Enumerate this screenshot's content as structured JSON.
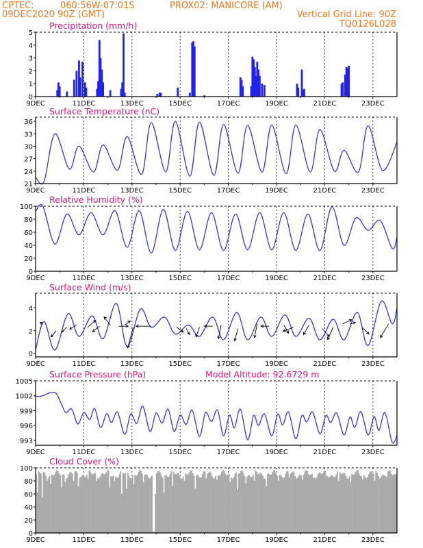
{
  "header": {
    "source": "CPTEC:",
    "coords": "060:56W-07:01S",
    "location": "PROX02: MANICORE (AM)",
    "run": "09DEC2020 90Z (GMT)",
    "grid_note": "Vertical Grid Line: 90Z",
    "code": "TQ0126L028"
  },
  "colors": {
    "header": "#f0781e",
    "titles": "#e0147a",
    "lines": "#3333dd",
    "bars": "#2222ee",
    "cloud": "#aaaaaa"
  },
  "x_axis_labels": [
    "9DEC",
    "11DEC",
    "13DEC",
    "15DEC",
    "17DEC",
    "19DEC",
    "21DEC",
    "23DEC"
  ],
  "chart_data": [
    {
      "type": "bar",
      "title": "Precipitation (mm/h)",
      "ylim": [
        0,
        5
      ],
      "yticks": [
        0,
        1,
        2,
        3,
        4,
        5
      ],
      "x_range_days": 15,
      "events": [
        {
          "day": 0.9,
          "value": 0.5
        },
        {
          "day": 0.95,
          "value": 1.1
        },
        {
          "day": 1.0,
          "value": 0.8
        },
        {
          "day": 1.3,
          "value": 0.4
        },
        {
          "day": 1.6,
          "value": 1.3
        },
        {
          "day": 1.7,
          "value": 2.0
        },
        {
          "day": 1.8,
          "value": 2.8
        },
        {
          "day": 1.85,
          "value": 1.5
        },
        {
          "day": 1.95,
          "value": 2.7
        },
        {
          "day": 2.05,
          "value": 1.1
        },
        {
          "day": 2.1,
          "value": 0.7
        },
        {
          "day": 2.55,
          "value": 0.6
        },
        {
          "day": 2.6,
          "value": 1.2
        },
        {
          "day": 2.65,
          "value": 4.4
        },
        {
          "day": 2.7,
          "value": 3.0
        },
        {
          "day": 2.75,
          "value": 2.1
        },
        {
          "day": 2.8,
          "value": 1.1
        },
        {
          "day": 3.1,
          "value": 0.5
        },
        {
          "day": 3.55,
          "value": 0.6
        },
        {
          "day": 3.6,
          "value": 1.1
        },
        {
          "day": 3.65,
          "value": 4.9
        },
        {
          "day": 3.7,
          "value": 0.3
        },
        {
          "day": 5.05,
          "value": 0.2
        },
        {
          "day": 5.15,
          "value": 0.3
        },
        {
          "day": 5.2,
          "value": 0.3
        },
        {
          "day": 5.9,
          "value": 0.7
        },
        {
          "day": 6.4,
          "value": 0.3
        },
        {
          "day": 6.5,
          "value": 4.2
        },
        {
          "day": 6.55,
          "value": 4.3
        },
        {
          "day": 6.6,
          "value": 3.9
        },
        {
          "day": 7.0,
          "value": 0.1
        },
        {
          "day": 8.5,
          "value": 1.5
        },
        {
          "day": 8.55,
          "value": 1.3
        },
        {
          "day": 8.6,
          "value": 0.8
        },
        {
          "day": 8.95,
          "value": 0.8
        },
        {
          "day": 9.0,
          "value": 3.1
        },
        {
          "day": 9.05,
          "value": 2.9
        },
        {
          "day": 9.1,
          "value": 2.3
        },
        {
          "day": 9.15,
          "value": 1.6
        },
        {
          "day": 9.2,
          "value": 2.7
        },
        {
          "day": 9.25,
          "value": 2.1
        },
        {
          "day": 9.3,
          "value": 1.6
        },
        {
          "day": 9.4,
          "value": 1.0
        },
        {
          "day": 9.5,
          "value": 0.9
        },
        {
          "day": 10.85,
          "value": 1.0
        },
        {
          "day": 10.9,
          "value": 0.7
        },
        {
          "day": 11.05,
          "value": 2.1
        },
        {
          "day": 11.1,
          "value": 0.5
        },
        {
          "day": 11.15,
          "value": 0.6
        },
        {
          "day": 12.7,
          "value": 1.0
        },
        {
          "day": 12.75,
          "value": 1.1
        },
        {
          "day": 12.85,
          "value": 1.7
        },
        {
          "day": 12.9,
          "value": 2.3
        },
        {
          "day": 12.95,
          "value": 2.2
        },
        {
          "day": 13.0,
          "value": 2.4
        }
      ]
    },
    {
      "type": "line",
      "title": "Surface Temperature (nC)",
      "ylim": [
        21,
        37
      ],
      "yticks": [
        21,
        24,
        27,
        30,
        33,
        36
      ],
      "mins": [
        21.5,
        24.5,
        23.8,
        24.2,
        23.2,
        23.8,
        22.8,
        23.0,
        23.5,
        23.8,
        23.4,
        23.8,
        24.0,
        23.8,
        24.2,
        23.0
      ],
      "maxs": [
        33.0,
        30.0,
        30.3,
        32.3,
        35.7,
        36.0,
        35.8,
        35.2,
        35.0,
        35.1,
        35.1,
        34.0,
        29.0,
        34.9
      ],
      "start": 22.5,
      "end": 31.0
    },
    {
      "type": "line",
      "title": "Relative Humidity (%)",
      "ylim": [
        0,
        100
      ],
      "yticks": [
        0,
        20,
        40,
        60,
        80,
        100
      ],
      "maxs": [
        100,
        88,
        90,
        93,
        93,
        95,
        92,
        90,
        88,
        90,
        90,
        88,
        99,
        82,
        78
      ],
      "mins": [
        42,
        56,
        56,
        37,
        28,
        32,
        33,
        32,
        33,
        33,
        32,
        32,
        40,
        63,
        35
      ],
      "start": 92,
      "end": 52
    },
    {
      "type": "line",
      "title": "Surface Wind (m/s)",
      "ylim": [
        -0.3,
        5.3
      ],
      "yticks": [
        0,
        2,
        4
      ],
      "maxs": [
        2.8,
        3.5,
        3.3,
        4.4,
        3.9,
        3.2,
        2.5,
        3.2,
        3.6,
        3.2,
        3.4,
        3.1,
        3.0,
        3.6,
        4.6
      ],
      "mins": [
        0.3,
        1.5,
        1.3,
        0.6,
        2.3,
        1.7,
        1.5,
        1.2,
        1.2,
        1.5,
        1.5,
        1.2,
        1.2,
        0.7,
        2.6
      ],
      "start": 0.3,
      "end": 4.0,
      "arrows": [
        {
          "day": 0.3,
          "value": 2.6,
          "dx": -4,
          "dy": -2
        },
        {
          "day": 0.85,
          "value": 2.0,
          "dx": -7,
          "dy": 9
        },
        {
          "day": 1.3,
          "value": 2.3,
          "dx": -8,
          "dy": 7
        },
        {
          "day": 1.7,
          "value": 2.5,
          "dx": -10,
          "dy": 6
        },
        {
          "day": 2.15,
          "value": 2.3,
          "dx": 12,
          "dy": -10
        },
        {
          "day": 2.65,
          "value": 2.4,
          "dx": -10,
          "dy": 8
        },
        {
          "day": 3.1,
          "value": 2.5,
          "dx": -9,
          "dy": -12
        },
        {
          "day": 3.45,
          "value": 2.4,
          "dx": 14,
          "dy": 0
        },
        {
          "day": 3.7,
          "value": 2.5,
          "dx": 8,
          "dy": -6
        },
        {
          "day": 4.05,
          "value": 2.3,
          "dx": -8,
          "dy": 30
        },
        {
          "day": 4.8,
          "value": 2.4,
          "dx": -22,
          "dy": 0
        },
        {
          "day": 5.85,
          "value": 2.3,
          "dx": 10,
          "dy": 7
        },
        {
          "day": 6.25,
          "value": 2.2,
          "dx": 5,
          "dy": 9
        },
        {
          "day": 6.8,
          "value": 2.3,
          "dx": -5,
          "dy": 14
        },
        {
          "day": 7.35,
          "value": 2.4,
          "dx": -12,
          "dy": 0
        },
        {
          "day": 7.7,
          "value": 2.5,
          "dx": -4,
          "dy": 20
        },
        {
          "day": 8.4,
          "value": 2.2,
          "dx": -5,
          "dy": 18
        },
        {
          "day": 9.2,
          "value": 2.6,
          "dx": -4,
          "dy": 20
        },
        {
          "day": 9.7,
          "value": 2.4,
          "dx": -12,
          "dy": 0
        },
        {
          "day": 10.3,
          "value": 2.5,
          "dx": 7,
          "dy": 12
        },
        {
          "day": 10.7,
          "value": 2.3,
          "dx": -15,
          "dy": 6
        },
        {
          "day": 11.35,
          "value": 2.5,
          "dx": -8,
          "dy": 14
        },
        {
          "day": 11.9,
          "value": 2.2,
          "dx": 10,
          "dy": 12
        },
        {
          "day": 12.35,
          "value": 2.3,
          "dx": -8,
          "dy": 18
        },
        {
          "day": 12.75,
          "value": 2.6,
          "dx": 13,
          "dy": -6
        },
        {
          "day": 13.05,
          "value": 2.6,
          "dx": 8,
          "dy": -2
        },
        {
          "day": 13.55,
          "value": 2.3,
          "dx": 10,
          "dy": 10
        },
        {
          "day": 14.65,
          "value": 2.6,
          "dx": -12,
          "dy": 20
        }
      ]
    },
    {
      "type": "line",
      "title": "Surface Pressure (hPa)",
      "annotation": "Model Altitude: 92.6729 m",
      "ylim": [
        992,
        1005
      ],
      "yticks": [
        993,
        996,
        999,
        1002,
        1005
      ],
      "series_points": [
        [
          0.0,
          1001.8
        ],
        [
          0.3,
          1002.0
        ],
        [
          0.6,
          1002.6
        ],
        [
          0.85,
          1002.5
        ],
        [
          1.05,
          1000.6
        ],
        [
          1.25,
          998.6
        ],
        [
          1.5,
          999.3
        ],
        [
          1.75,
          996.3
        ],
        [
          2.0,
          998.6
        ],
        [
          2.25,
          997.2
        ],
        [
          2.45,
          999.4
        ],
        [
          2.7,
          995.6
        ],
        [
          2.95,
          998.4
        ],
        [
          3.15,
          996.6
        ],
        [
          3.4,
          998.7
        ],
        [
          3.7,
          994.2
        ],
        [
          3.95,
          998.3
        ],
        [
          4.2,
          996.4
        ],
        [
          4.45,
          999.9
        ],
        [
          4.75,
          994.8
        ],
        [
          5.0,
          998.5
        ],
        [
          5.25,
          996.5
        ],
        [
          5.5,
          999.3
        ],
        [
          5.75,
          994.8
        ],
        [
          6.0,
          998.1
        ],
        [
          6.25,
          996.2
        ],
        [
          6.5,
          999.1
        ],
        [
          6.8,
          993.8
        ],
        [
          7.05,
          998.6
        ],
        [
          7.3,
          996.8
        ],
        [
          7.55,
          999.1
        ],
        [
          7.8,
          993.9
        ],
        [
          8.05,
          998.1
        ],
        [
          8.25,
          995.5
        ],
        [
          8.5,
          999.3
        ],
        [
          8.8,
          993.1
        ],
        [
          9.05,
          998.0
        ],
        [
          9.25,
          996.0
        ],
        [
          9.5,
          998.3
        ],
        [
          9.8,
          993.9
        ],
        [
          10.05,
          998.3
        ],
        [
          10.25,
          996.1
        ],
        [
          10.5,
          998.7
        ],
        [
          10.8,
          993.3
        ],
        [
          11.05,
          998.0
        ],
        [
          11.25,
          996.7
        ],
        [
          11.5,
          998.7
        ],
        [
          11.8,
          994.3
        ],
        [
          12.05,
          998.0
        ],
        [
          12.25,
          996.6
        ],
        [
          12.5,
          998.5
        ],
        [
          12.8,
          994.1
        ],
        [
          13.05,
          997.7
        ],
        [
          13.25,
          995.6
        ],
        [
          13.5,
          998.8
        ],
        [
          13.8,
          994.1
        ],
        [
          14.05,
          997.8
        ],
        [
          14.25,
          995.0
        ],
        [
          14.5,
          998.6
        ],
        [
          14.8,
          992.6
        ],
        [
          15.0,
          994.0
        ]
      ]
    },
    {
      "type": "bar",
      "title": "Cloud Cover (%)",
      "ylim": [
        0,
        100
      ],
      "yticks": [
        0,
        20,
        40,
        60,
        80,
        100
      ],
      "typical_value": 90,
      "dips": [
        {
          "day": 0.05,
          "value": 62
        },
        {
          "day": 0.25,
          "value": 55
        },
        {
          "day": 0.45,
          "value": 80
        },
        {
          "day": 0.6,
          "value": 75
        },
        {
          "day": 1.05,
          "value": 70
        },
        {
          "day": 1.2,
          "value": 78
        },
        {
          "day": 1.55,
          "value": 80
        },
        {
          "day": 1.75,
          "value": 72
        },
        {
          "day": 2.15,
          "value": 83
        },
        {
          "day": 2.5,
          "value": 80
        },
        {
          "day": 3.05,
          "value": 70
        },
        {
          "day": 3.25,
          "value": 80
        },
        {
          "day": 3.55,
          "value": 60
        },
        {
          "day": 3.75,
          "value": 68
        },
        {
          "day": 4.05,
          "value": 75
        },
        {
          "day": 4.45,
          "value": 78
        },
        {
          "day": 4.8,
          "value": 88
        },
        {
          "day": 4.87,
          "value": 2
        },
        {
          "day": 4.93,
          "value": 60
        },
        {
          "day": 5.3,
          "value": 62
        },
        {
          "day": 5.65,
          "value": 72
        },
        {
          "day": 6.15,
          "value": 80
        },
        {
          "day": 6.6,
          "value": 68
        },
        {
          "day": 7.05,
          "value": 84
        },
        {
          "day": 7.5,
          "value": 82
        },
        {
          "day": 8.05,
          "value": 78
        },
        {
          "day": 8.35,
          "value": 66
        },
        {
          "day": 8.7,
          "value": 76
        },
        {
          "day": 9.05,
          "value": 80
        },
        {
          "day": 9.55,
          "value": 72
        },
        {
          "day": 10.05,
          "value": 80
        },
        {
          "day": 10.5,
          "value": 86
        },
        {
          "day": 11.05,
          "value": 82
        },
        {
          "day": 11.5,
          "value": 85
        },
        {
          "day": 12.05,
          "value": 88
        },
        {
          "day": 12.55,
          "value": 80
        },
        {
          "day": 13.05,
          "value": 78
        },
        {
          "day": 13.55,
          "value": 82
        },
        {
          "day": 14.05,
          "value": 80
        },
        {
          "day": 14.55,
          "value": 86
        }
      ]
    }
  ]
}
